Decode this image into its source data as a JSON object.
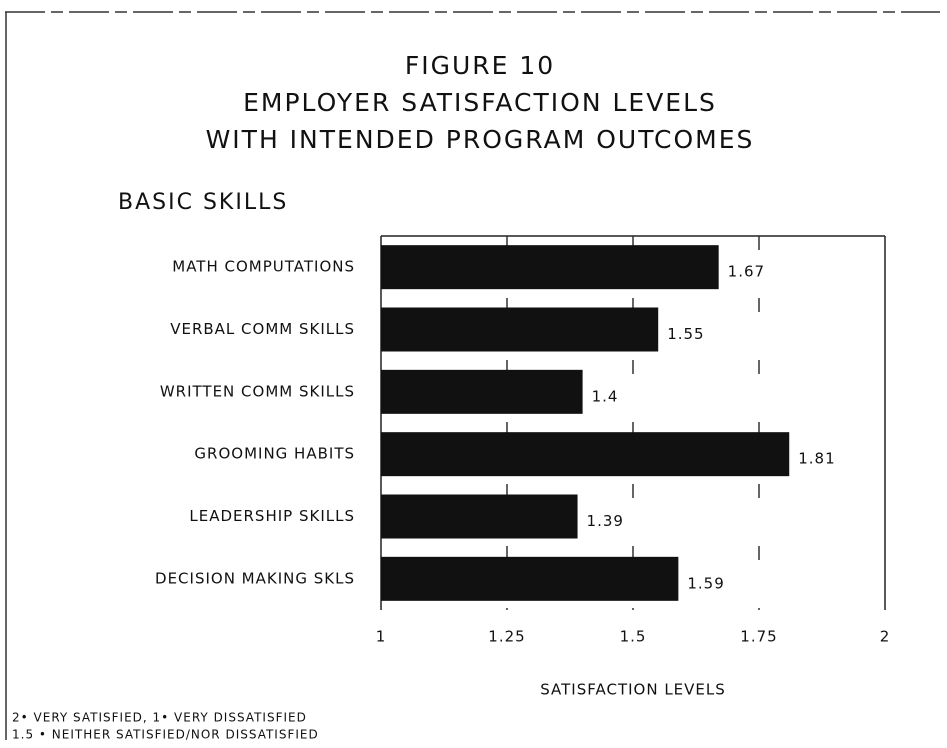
{
  "chart_data": {
    "type": "bar",
    "orientation": "horizontal",
    "title": [
      "FIGURE 10",
      "EMPLOYER SATISFACTION LEVELS",
      "WITH INTENDED PROGRAM OUTCOMES"
    ],
    "subtitle": "BASIC SKILLS",
    "categories": [
      "MATH COMPUTATIONS",
      "VERBAL COMM SKILLS",
      "WRITTEN COMM SKILLS",
      "GROOMING HABITS",
      "LEADERSHIP SKILLS",
      "DECISION MAKING SKLS"
    ],
    "values": [
      1.67,
      1.55,
      1.4,
      1.81,
      1.39,
      1.59
    ],
    "color": "#111111",
    "xlabel": "SATISFACTION LEVELS",
    "xlim": [
      1,
      2
    ],
    "xticks": [
      1,
      1.25,
      1.5,
      1.75,
      2
    ],
    "grid": true,
    "notes": [
      "2• VERY SATISFIED, 1• VERY DISSATISFIED",
      "1.5 • NEITHER SATISFIED/NOR DISSATISFIED"
    ]
  }
}
